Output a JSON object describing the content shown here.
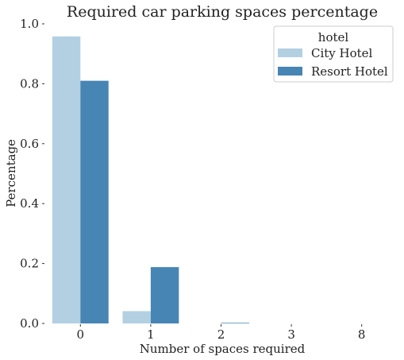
{
  "chart_data": {
    "type": "bar",
    "title": "Required car parking spaces percentage",
    "xlabel": "Number of spaces required",
    "ylabel": "Percentage",
    "categories": [
      "0",
      "1",
      "2",
      "3",
      "8"
    ],
    "series": [
      {
        "name": "City Hotel",
        "color": "#b3d0e3",
        "values": [
          0.958,
          0.041,
          0.0,
          0.0,
          0.0
        ]
      },
      {
        "name": "Resort Hotel",
        "color": "#4785b5",
        "values": [
          0.81,
          0.188,
          0.002,
          0.0,
          0.0
        ]
      }
    ],
    "ylim": [
      0,
      1.0
    ],
    "yticks": [
      "0.0",
      "0.2",
      "0.4",
      "0.6",
      "0.8",
      "1.0"
    ],
    "grid": false,
    "legend": {
      "title": "hotel",
      "placement": "top-right"
    }
  }
}
